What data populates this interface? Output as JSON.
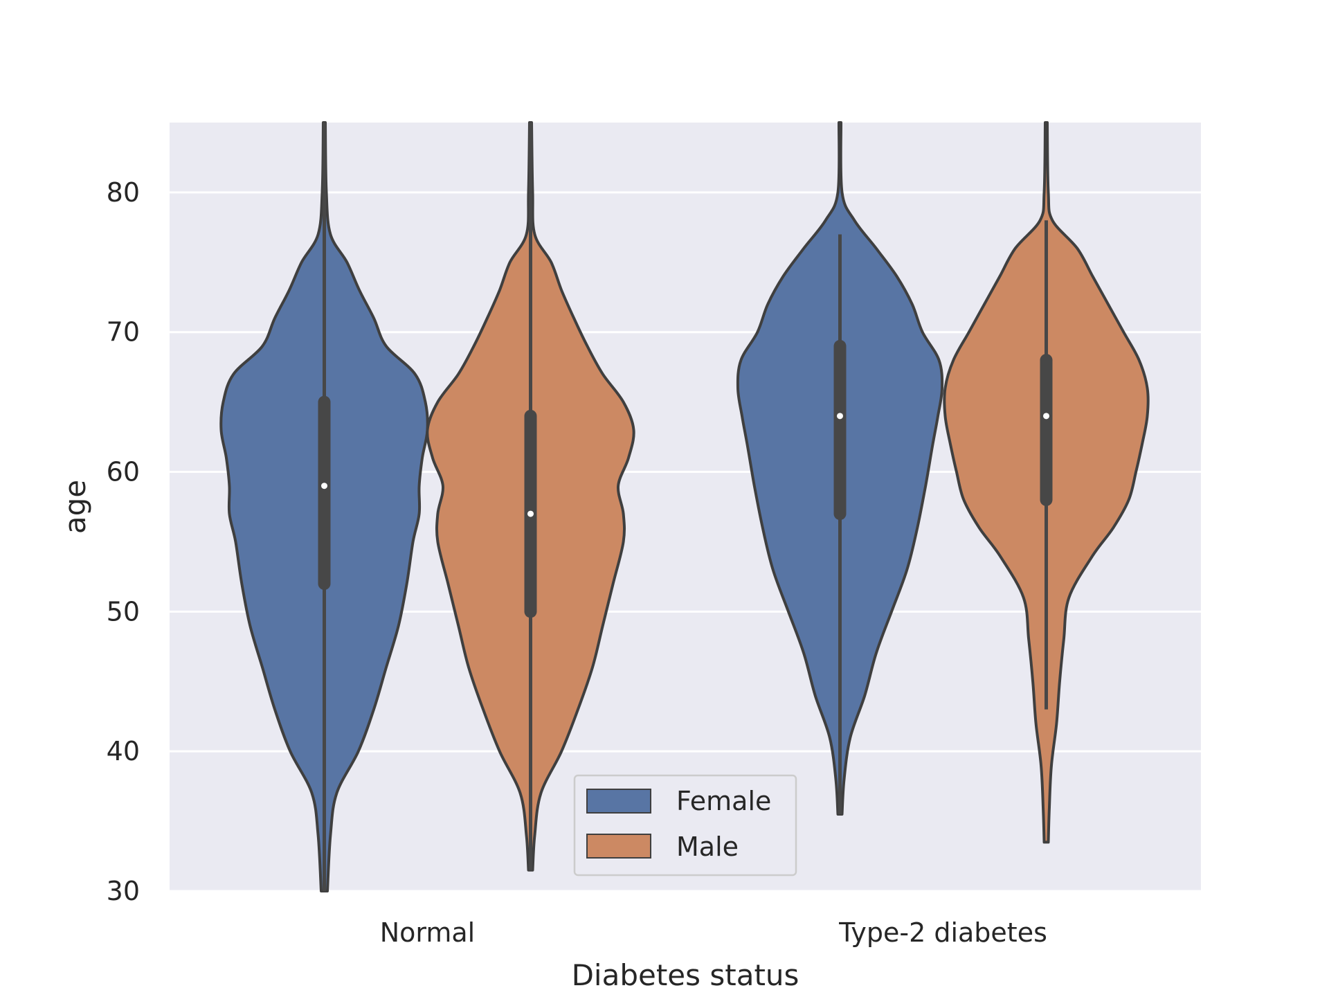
{
  "chart_data": {
    "type": "violin",
    "title": "",
    "xlabel": "Diabetes status",
    "ylabel": "age",
    "categories": [
      "Normal",
      "Type-2 diabetes"
    ],
    "ylim": [
      30,
      85
    ],
    "yticks": [
      30,
      40,
      50,
      60,
      70,
      80
    ],
    "grid": true,
    "legend_position": "bottom-center",
    "series": [
      {
        "name": "Female",
        "color": "#5875a4",
        "groups": [
          {
            "category": "Normal",
            "median": 59,
            "q1": 52,
            "q3": 65,
            "whisker_low": 30,
            "whisker_high": 85,
            "density": [
              [
                30,
                0.03
              ],
              [
                34,
                0.06
              ],
              [
                37,
                0.12
              ],
              [
                40,
                0.33
              ],
              [
                43,
                0.48
              ],
              [
                46,
                0.6
              ],
              [
                49,
                0.72
              ],
              [
                52,
                0.8
              ],
              [
                55,
                0.86
              ],
              [
                57,
                0.92
              ],
              [
                59,
                0.92
              ],
              [
                61,
                0.95
              ],
              [
                63,
                1.0
              ],
              [
                65,
                0.98
              ],
              [
                67,
                0.88
              ],
              [
                69,
                0.6
              ],
              [
                71,
                0.48
              ],
              [
                73,
                0.34
              ],
              [
                75,
                0.22
              ],
              [
                77,
                0.06
              ],
              [
                80,
                0.02
              ],
              [
                85,
                0.01
              ]
            ]
          },
          {
            "category": "Type-2 diabetes",
            "median": 64,
            "q1": 57,
            "q3": 69,
            "whisker_low": 35.5,
            "whisker_high": 77,
            "density": [
              [
                35.5,
                0.02
              ],
              [
                38,
                0.04
              ],
              [
                41,
                0.1
              ],
              [
                44,
                0.24
              ],
              [
                47,
                0.35
              ],
              [
                50,
                0.5
              ],
              [
                53,
                0.65
              ],
              [
                56,
                0.75
              ],
              [
                59,
                0.83
              ],
              [
                62,
                0.9
              ],
              [
                64,
                0.95
              ],
              [
                66,
                0.99
              ],
              [
                68,
                0.96
              ],
              [
                70,
                0.8
              ],
              [
                72,
                0.7
              ],
              [
                74,
                0.55
              ],
              [
                76,
                0.35
              ],
              [
                78,
                0.14
              ],
              [
                80,
                0.02
              ],
              [
                85,
                0.01
              ]
            ]
          }
        ]
      },
      {
        "name": "Male",
        "color": "#cc8963",
        "groups": [
          {
            "category": "Normal",
            "median": 57,
            "q1": 50,
            "q3": 64,
            "whisker_low": 31.5,
            "whisker_high": 85,
            "density": [
              [
                31.5,
                0.02
              ],
              [
                34,
                0.04
              ],
              [
                37,
                0.1
              ],
              [
                40,
                0.3
              ],
              [
                43,
                0.46
              ],
              [
                46,
                0.6
              ],
              [
                49,
                0.7
              ],
              [
                52,
                0.8
              ],
              [
                55,
                0.9
              ],
              [
                57,
                0.9
              ],
              [
                59,
                0.85
              ],
              [
                61,
                0.95
              ],
              [
                63,
                1.0
              ],
              [
                65,
                0.9
              ],
              [
                67,
                0.7
              ],
              [
                69,
                0.55
              ],
              [
                71,
                0.42
              ],
              [
                73,
                0.3
              ],
              [
                75,
                0.2
              ],
              [
                77,
                0.04
              ],
              [
                80,
                0.02
              ],
              [
                85,
                0.01
              ]
            ]
          },
          {
            "category": "Type-2 diabetes",
            "median": 64,
            "q1": 58,
            "q3": 68,
            "whisker_low": 43,
            "whisker_high": 78,
            "density": [
              [
                33.5,
                0.02
              ],
              [
                36,
                0.03
              ],
              [
                39,
                0.05
              ],
              [
                42,
                0.1
              ],
              [
                45,
                0.13
              ],
              [
                48,
                0.17
              ],
              [
                51,
                0.22
              ],
              [
                54,
                0.45
              ],
              [
                56,
                0.65
              ],
              [
                58,
                0.8
              ],
              [
                60,
                0.87
              ],
              [
                62,
                0.93
              ],
              [
                64,
                0.98
              ],
              [
                66,
                0.98
              ],
              [
                68,
                0.9
              ],
              [
                70,
                0.75
              ],
              [
                72,
                0.6
              ],
              [
                74,
                0.45
              ],
              [
                76,
                0.3
              ],
              [
                78,
                0.06
              ],
              [
                80,
                0.02
              ],
              [
                85,
                0.01
              ]
            ]
          }
        ]
      }
    ]
  }
}
